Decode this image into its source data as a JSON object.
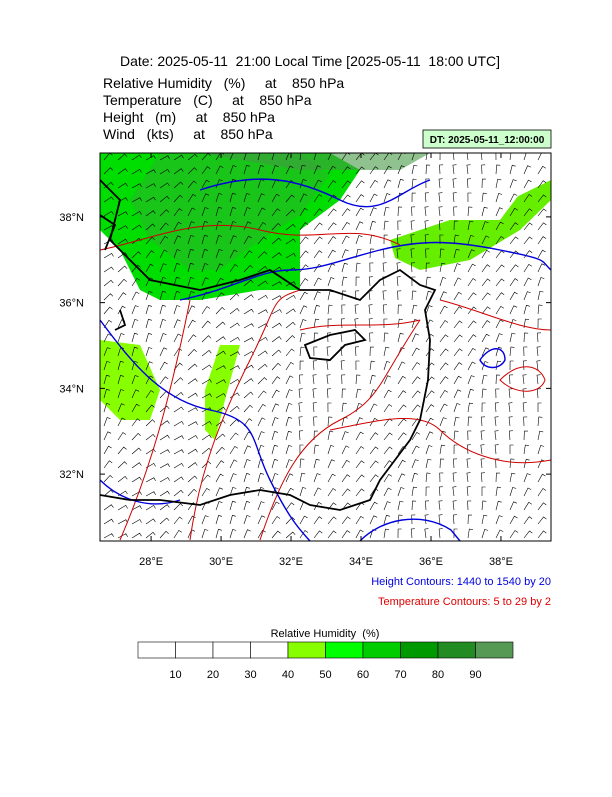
{
  "header": {
    "title": "Date: 2025-05-11  21:00 Local Time [2025-05-11  18:00 UTC]",
    "fields": [
      "Relative Humidity   (%)     at    850 hPa",
      "Temperature   (C)     at    850 hPa",
      "Height   (m)     at    850 hPa",
      "Wind   (kts)     at    850 hPa"
    ],
    "dt_label": "DT: 2025-05-11_12:00:00"
  },
  "map": {
    "xlim": [
      26.54,
      39.43
    ],
    "ylim": [
      30.44,
      39.49
    ],
    "xticks": [
      {
        "value": 28,
        "label": "28°E"
      },
      {
        "value": 30,
        "label": "30°E"
      },
      {
        "value": 32,
        "label": "32°E"
      },
      {
        "value": 34,
        "label": "34°E"
      },
      {
        "value": 36,
        "label": "36°E"
      },
      {
        "value": 38,
        "label": "38°E"
      }
    ],
    "yticks": [
      {
        "value": 32,
        "label": "32°N"
      },
      {
        "value": 34,
        "label": "34°N"
      },
      {
        "value": 36,
        "label": "36°N"
      },
      {
        "value": 38,
        "label": "38°N"
      }
    ],
    "height_note": "Height Contours: 1440 to 1540 by 20",
    "temperature_note": "Temperature Contours: 5 to 29 by 2"
  },
  "colorbar": {
    "title": "Relative Humidity  (%)",
    "levels": [
      10,
      20,
      30,
      40,
      50,
      60,
      70,
      80,
      90
    ],
    "colors": [
      "#ffffff",
      "#ffffff",
      "#ffffff",
      "#ffffff",
      "#88ff00",
      "#00ff00",
      "#00cc00",
      "#009900",
      "#228b22",
      "#559955"
    ]
  }
}
